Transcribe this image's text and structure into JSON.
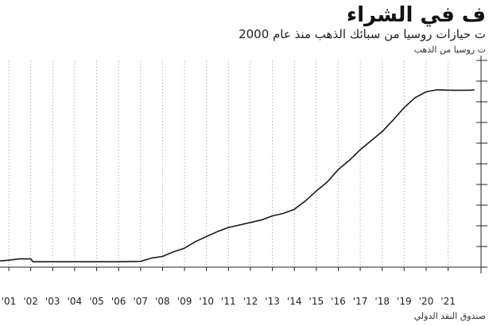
{
  "header": {
    "title": "ف في الشراء",
    "subtitle": "ت حيازات روسيا من سبائك الذهب منذ عام 2000",
    "unit": "ت روسيا من الذهب"
  },
  "footer": {
    "source": "صندوق النقد الدولي"
  },
  "colors": {
    "line": "#1a1a1a",
    "grid": "#b5b5b5",
    "axis": "#222222"
  },
  "chart_data": {
    "type": "line",
    "title": "ف في الشراء",
    "subtitle": "ت حيازات روسيا من سبائك الذهب منذ عام 2000",
    "ylabel": "ت روسيا من الذهب",
    "xlim": [
      2000.6,
      2022.5
    ],
    "ylim": [
      0,
      2500
    ],
    "y_gridlines": [
      0,
      250,
      500,
      750,
      1000,
      1250,
      1500,
      1750,
      2000,
      2250,
      2500
    ],
    "tick_labels": [
      "'01",
      "'02",
      "'03",
      "'04",
      "'05",
      "'06",
      "'07",
      "'08",
      "'09",
      "'10",
      "'11",
      "'12",
      "'13",
      "'14",
      "'15",
      "'16",
      "'17",
      "'18",
      "'19",
      "'20",
      "'21"
    ],
    "tick_positions": [
      2001,
      2002,
      2003,
      2004,
      2005,
      2006,
      2007,
      2008,
      2009,
      2010,
      2011,
      2012,
      2013,
      2014,
      2015,
      2016,
      2017,
      2018,
      2019,
      2020,
      2021
    ],
    "grid": true,
    "series": [
      {
        "x": [
          2000.6,
          2001.0,
          2001.5,
          2002.0,
          2002.1,
          2003.0,
          2004.0,
          2005.0,
          2006.0,
          2007.0,
          2007.5,
          2008.0,
          2008.5,
          2009.0,
          2009.5,
          2010.0,
          2010.5,
          2011.0,
          2011.5,
          2012.0,
          2012.5,
          2013.0,
          2013.5,
          2014.0,
          2014.5,
          2015.0,
          2015.5,
          2016.0,
          2016.5,
          2017.0,
          2017.5,
          2018.0,
          2018.5,
          2019.0,
          2019.5,
          2020.0,
          2020.5,
          2021.0,
          2021.5,
          2022.0,
          2022.2
        ],
        "values": [
          75,
          85,
          100,
          100,
          65,
          65,
          65,
          65,
          65,
          70,
          110,
          130,
          185,
          230,
          310,
          370,
          430,
          480,
          510,
          540,
          570,
          620,
          650,
          700,
          800,
          920,
          1030,
          1180,
          1290,
          1420,
          1530,
          1640,
          1780,
          1930,
          2050,
          2120,
          2145,
          2140,
          2138,
          2140,
          2142
        ]
      }
    ]
  }
}
